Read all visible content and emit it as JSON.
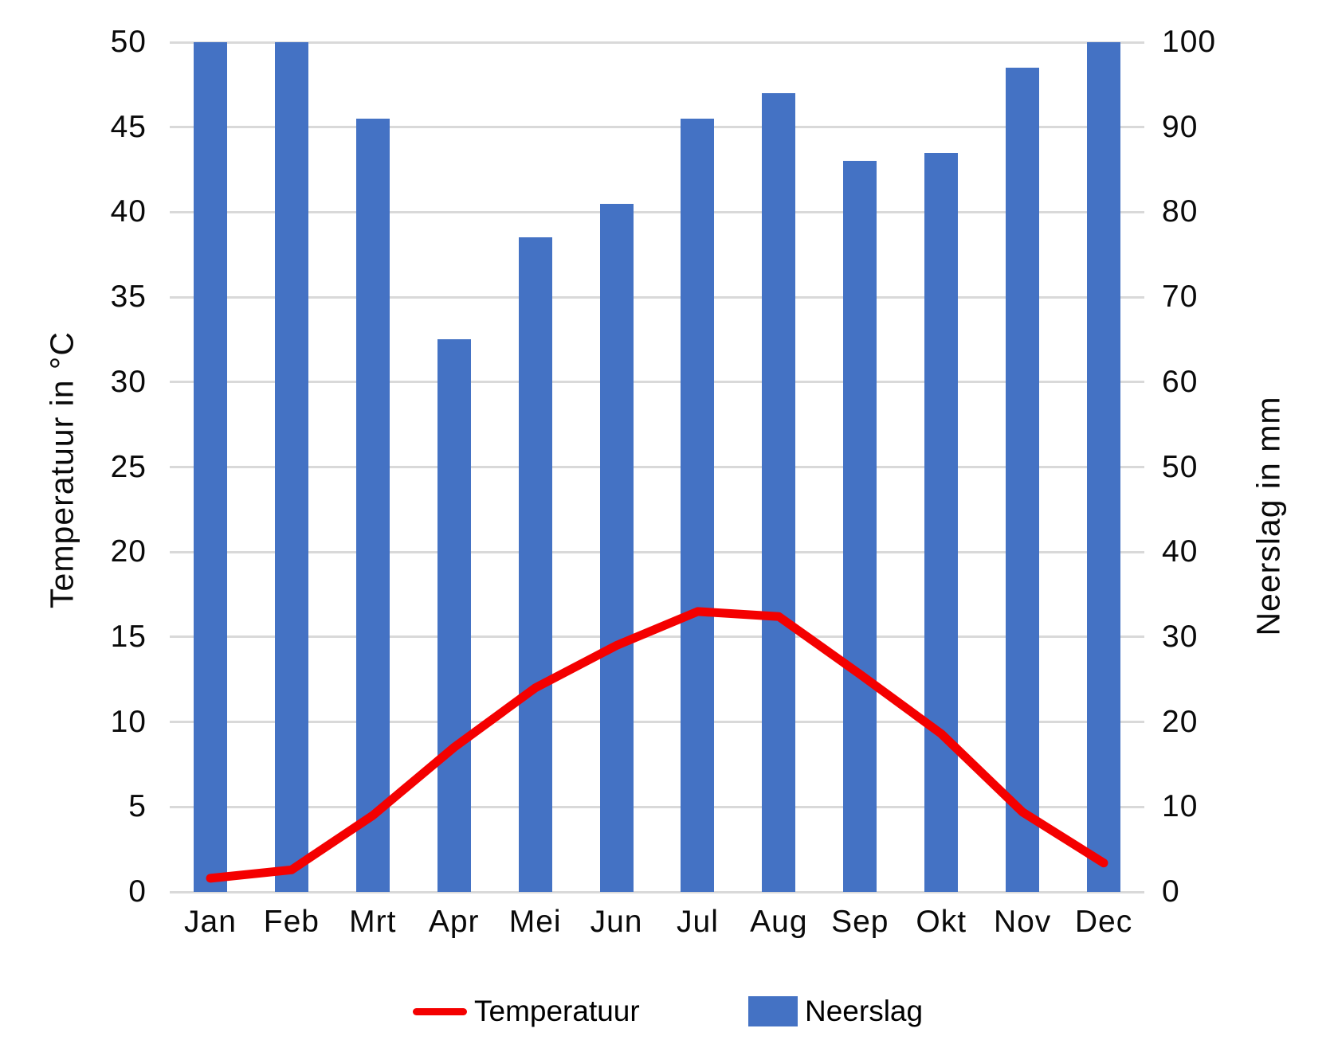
{
  "chart_data": {
    "type": "combo-bar-line",
    "title": "",
    "categories": [
      "Jan",
      "Feb",
      "Mrt",
      "Apr",
      "Mei",
      "Jun",
      "Jul",
      "Aug",
      "Sep",
      "Okt",
      "Nov",
      "Dec"
    ],
    "series": [
      {
        "name": "Neerslag",
        "type": "bar",
        "axis": "right",
        "color": "#4472c4",
        "values": [
          100,
          100,
          91,
          65,
          77,
          81,
          91,
          94,
          86,
          87,
          97,
          100
        ]
      },
      {
        "name": "Temperatuur",
        "type": "line",
        "axis": "left",
        "color": "#f40000",
        "values": [
          0.8,
          1.3,
          4.5,
          8.5,
          12.0,
          14.5,
          16.5,
          16.2,
          12.8,
          9.3,
          4.7,
          1.7
        ]
      }
    ],
    "left_axis": {
      "label": "Temperatuur in °C",
      "min": 0,
      "max": 50,
      "step": 5,
      "ticks": [
        "0",
        "5",
        "10",
        "15",
        "20",
        "25",
        "30",
        "35",
        "40",
        "45",
        "50"
      ]
    },
    "right_axis": {
      "label": "Neerslag in mm",
      "min": 0,
      "max": 100,
      "step": 10,
      "ticks": [
        "0",
        "10",
        "20",
        "30",
        "40",
        "50",
        "60",
        "70",
        "80",
        "90",
        "100"
      ]
    },
    "grid": true,
    "legend_position": "bottom",
    "legend": [
      {
        "label": "Temperatuur",
        "swatch": "line",
        "color": "#f40000"
      },
      {
        "label": "Neerslag",
        "swatch": "rect",
        "color": "#4472c4"
      }
    ],
    "colors": {
      "gridline": "#d9d9d9",
      "text": "#0a0a0a",
      "background": "#ffffff"
    }
  }
}
